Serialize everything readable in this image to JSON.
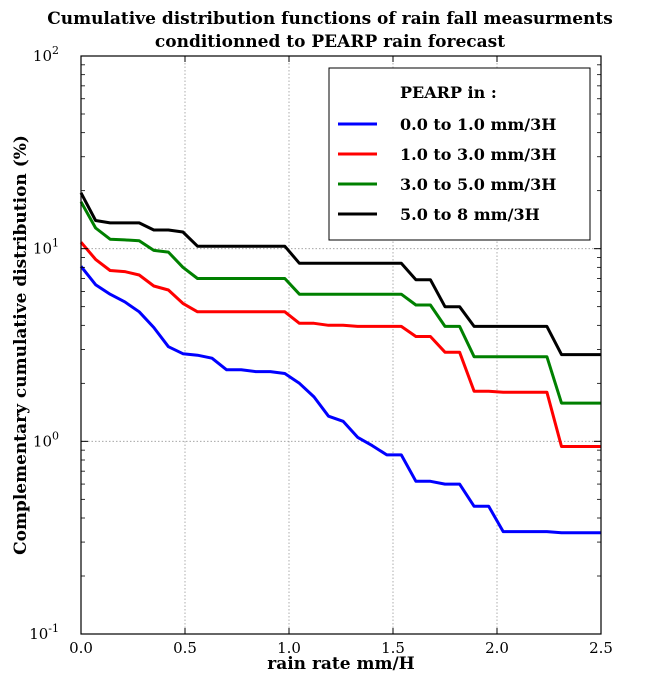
{
  "chart_data": {
    "type": "line",
    "title_lines": [
      "Cumulative distribution functions of rain fall measurments",
      "conditionned to PEARP rain forecast"
    ],
    "xlabel": "rain rate mm/H",
    "ylabel": "Complementary cumulative distribution (%)",
    "xlim": [
      0.0,
      2.5
    ],
    "ylim": [
      0.1,
      100
    ],
    "yscale": "log",
    "grid": true,
    "legend_position": "top-right",
    "legend_title": "PEARP in :",
    "x_ticks": [
      "0.0",
      "0.5",
      "1.0",
      "1.5",
      "2.0",
      "2.5"
    ],
    "y_ticks": [
      {
        "base": "10",
        "exp": "-1"
      },
      {
        "base": "10",
        "exp": "0"
      },
      {
        "base": "10",
        "exp": "1"
      },
      {
        "base": "10",
        "exp": "2"
      }
    ],
    "series": [
      {
        "name": "0.0 to 1.0 mm/3H",
        "color": "#0000ff",
        "points": [
          [
            0.0,
            8.1
          ],
          [
            0.07,
            6.5
          ],
          [
            0.14,
            5.8
          ],
          [
            0.21,
            5.3
          ],
          [
            0.28,
            4.7
          ],
          [
            0.35,
            3.9
          ],
          [
            0.42,
            3.1
          ],
          [
            0.49,
            2.85
          ],
          [
            0.56,
            2.8
          ],
          [
            0.63,
            2.7
          ],
          [
            0.7,
            2.35
          ],
          [
            0.77,
            2.35
          ],
          [
            0.84,
            2.3
          ],
          [
            0.91,
            2.3
          ],
          [
            0.98,
            2.25
          ],
          [
            1.05,
            2.0
          ],
          [
            1.12,
            1.7
          ],
          [
            1.19,
            1.35
          ],
          [
            1.26,
            1.27
          ],
          [
            1.33,
            1.05
          ],
          [
            1.4,
            0.95
          ],
          [
            1.47,
            0.85
          ],
          [
            1.54,
            0.85
          ],
          [
            1.61,
            0.62
          ],
          [
            1.68,
            0.62
          ],
          [
            1.75,
            0.6
          ],
          [
            1.82,
            0.6
          ],
          [
            1.89,
            0.46
          ],
          [
            1.96,
            0.46
          ],
          [
            2.03,
            0.34
          ],
          [
            2.1,
            0.34
          ],
          [
            2.17,
            0.34
          ],
          [
            2.24,
            0.34
          ],
          [
            2.31,
            0.335
          ],
          [
            2.38,
            0.335
          ],
          [
            2.5,
            0.335
          ]
        ]
      },
      {
        "name": "1.0 to 3.0 mm/3H",
        "color": "#ff0000",
        "points": [
          [
            0.0,
            10.8
          ],
          [
            0.07,
            8.8
          ],
          [
            0.14,
            7.7
          ],
          [
            0.21,
            7.6
          ],
          [
            0.28,
            7.3
          ],
          [
            0.35,
            6.4
          ],
          [
            0.42,
            6.1
          ],
          [
            0.49,
            5.2
          ],
          [
            0.56,
            4.7
          ],
          [
            0.63,
            4.7
          ],
          [
            0.7,
            4.7
          ],
          [
            0.77,
            4.7
          ],
          [
            0.84,
            4.7
          ],
          [
            0.91,
            4.7
          ],
          [
            0.98,
            4.7
          ],
          [
            1.05,
            4.1
          ],
          [
            1.12,
            4.1
          ],
          [
            1.19,
            4.0
          ],
          [
            1.26,
            4.0
          ],
          [
            1.33,
            3.95
          ],
          [
            1.4,
            3.95
          ],
          [
            1.47,
            3.95
          ],
          [
            1.54,
            3.95
          ],
          [
            1.61,
            3.5
          ],
          [
            1.68,
            3.5
          ],
          [
            1.75,
            2.9
          ],
          [
            1.82,
            2.9
          ],
          [
            1.89,
            1.82
          ],
          [
            1.96,
            1.82
          ],
          [
            2.03,
            1.8
          ],
          [
            2.1,
            1.8
          ],
          [
            2.17,
            1.8
          ],
          [
            2.24,
            1.8
          ],
          [
            2.31,
            0.94
          ],
          [
            2.38,
            0.94
          ],
          [
            2.5,
            0.94
          ]
        ]
      },
      {
        "name": "3.0 to 5.0 mm/3H",
        "color": "#008000",
        "points": [
          [
            0.0,
            17.5
          ],
          [
            0.07,
            12.8
          ],
          [
            0.14,
            11.2
          ],
          [
            0.21,
            11.1
          ],
          [
            0.28,
            11.0
          ],
          [
            0.35,
            9.8
          ],
          [
            0.42,
            9.6
          ],
          [
            0.49,
            8.0
          ],
          [
            0.56,
            7.0
          ],
          [
            0.63,
            7.0
          ],
          [
            0.7,
            7.0
          ],
          [
            0.77,
            7.0
          ],
          [
            0.84,
            7.0
          ],
          [
            0.91,
            7.0
          ],
          [
            0.98,
            7.0
          ],
          [
            1.05,
            5.8
          ],
          [
            1.12,
            5.8
          ],
          [
            1.19,
            5.8
          ],
          [
            1.26,
            5.8
          ],
          [
            1.33,
            5.8
          ],
          [
            1.4,
            5.8
          ],
          [
            1.47,
            5.8
          ],
          [
            1.54,
            5.8
          ],
          [
            1.61,
            5.1
          ],
          [
            1.68,
            5.1
          ],
          [
            1.75,
            3.95
          ],
          [
            1.82,
            3.95
          ],
          [
            1.89,
            2.75
          ],
          [
            1.96,
            2.75
          ],
          [
            2.03,
            2.75
          ],
          [
            2.1,
            2.75
          ],
          [
            2.17,
            2.75
          ],
          [
            2.24,
            2.75
          ],
          [
            2.31,
            1.58
          ],
          [
            2.38,
            1.58
          ],
          [
            2.5,
            1.58
          ]
        ]
      },
      {
        "name": "5.0 to 8 mm/3H",
        "color": "#000000",
        "points": [
          [
            0.0,
            19.5
          ],
          [
            0.07,
            14.0
          ],
          [
            0.14,
            13.6
          ],
          [
            0.21,
            13.6
          ],
          [
            0.28,
            13.6
          ],
          [
            0.35,
            12.5
          ],
          [
            0.42,
            12.5
          ],
          [
            0.49,
            12.2
          ],
          [
            0.56,
            10.3
          ],
          [
            0.63,
            10.3
          ],
          [
            0.7,
            10.3
          ],
          [
            0.77,
            10.3
          ],
          [
            0.84,
            10.3
          ],
          [
            0.91,
            10.3
          ],
          [
            0.98,
            10.3
          ],
          [
            1.05,
            8.4
          ],
          [
            1.12,
            8.4
          ],
          [
            1.19,
            8.4
          ],
          [
            1.26,
            8.4
          ],
          [
            1.33,
            8.4
          ],
          [
            1.4,
            8.4
          ],
          [
            1.47,
            8.4
          ],
          [
            1.54,
            8.4
          ],
          [
            1.61,
            6.9
          ],
          [
            1.68,
            6.9
          ],
          [
            1.75,
            5.0
          ],
          [
            1.82,
            5.0
          ],
          [
            1.89,
            3.95
          ],
          [
            1.96,
            3.95
          ],
          [
            2.03,
            3.95
          ],
          [
            2.1,
            3.95
          ],
          [
            2.17,
            3.95
          ],
          [
            2.24,
            3.95
          ],
          [
            2.31,
            2.82
          ],
          [
            2.38,
            2.82
          ],
          [
            2.5,
            2.82
          ]
        ]
      }
    ]
  }
}
